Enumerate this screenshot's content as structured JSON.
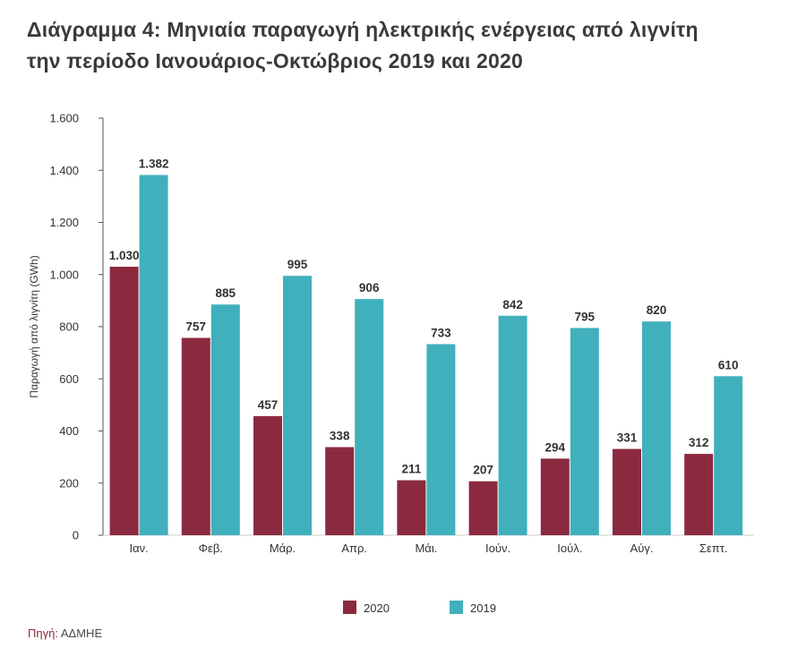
{
  "title_line1": "Διάγραμμα 4: Μηνιαία παραγωγή ηλεκτρικής ενέργειας από λιγνίτη",
  "title_line2": "την περίοδο Ιανουάριος-Οκτώβριος 2019 και 2020",
  "source_label": "Πηγή:",
  "source_value": "ΑΔΜΗΕ",
  "colors": {
    "s2020": "#8b2a3f",
    "s2019": "#40b0bc",
    "axis": "#555555",
    "text": "#333333"
  },
  "chart_data": {
    "type": "bar",
    "title": "Διάγραμμα 4: Μηνιαία παραγωγή ηλεκτρικής ενέργειας από λιγνίτη την περίοδο Ιανουάριος-Οκτώβριος 2019 και 2020",
    "xlabel": "",
    "ylabel": "Παραγωγή από λιγνίτη (GWh)",
    "ylim": [
      0,
      1600
    ],
    "yticks": [
      0,
      200,
      400,
      600,
      800,
      1000,
      1200,
      1400,
      1600
    ],
    "ytick_labels": [
      "0",
      "200",
      "400",
      "600",
      "800",
      "1.000",
      "1.200",
      "1.400",
      "1.600"
    ],
    "categories": [
      "Ιαν.",
      "Φεβ.",
      "Μάρ.",
      "Απρ.",
      "Μάι.",
      "Ιούν.",
      "Ιούλ.",
      "Αύγ.",
      "Σεπτ."
    ],
    "series": [
      {
        "name": "2020",
        "values": [
          1030,
          757,
          457,
          338,
          211,
          207,
          294,
          331,
          312
        ],
        "labels": [
          "1.030",
          "757",
          "457",
          "338",
          "211",
          "207",
          "294",
          "331",
          "312"
        ]
      },
      {
        "name": "2019",
        "values": [
          1382,
          885,
          995,
          906,
          733,
          842,
          795,
          820,
          610
        ],
        "labels": [
          "1.382",
          "885",
          "995",
          "906",
          "733",
          "842",
          "795",
          "820",
          "610"
        ]
      }
    ],
    "legend": "bottom-center",
    "grid": false
  }
}
